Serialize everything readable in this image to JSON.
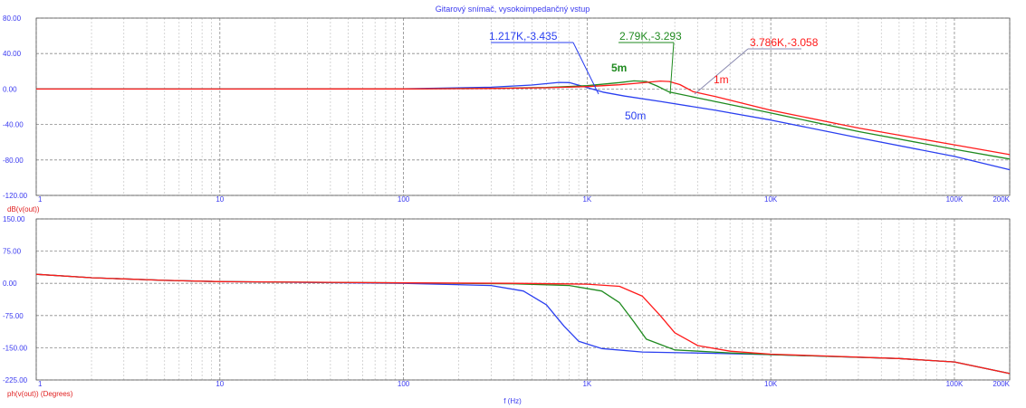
{
  "title": "Gitarový snímač, vysokoimpedančný vstup",
  "xlabel": "f (Hz)",
  "colors": {
    "red": "#ff1a1a",
    "green": "#1f8a1f",
    "blue": "#2a3ff0",
    "grid": "#9a9a9a",
    "ylabelColor": "#e02020"
  },
  "chart_data": [
    {
      "type": "line",
      "panel": "magnitude",
      "ylabel": "dB(v(out))",
      "xscale": "log",
      "xlim": [
        1,
        200000
      ],
      "ylim": [
        -120,
        80
      ],
      "grid": true,
      "x_ticks": [
        1,
        10,
        100,
        1000,
        10000,
        100000,
        200000
      ],
      "x_tick_labels": [
        "1",
        "10",
        "100",
        "1K",
        "10K",
        "100K",
        "200K"
      ],
      "y_ticks": [
        80,
        40,
        0,
        -40,
        -80,
        -120
      ],
      "y_tick_labels": [
        "80.00",
        "40.00",
        "0.00",
        "-40.00",
        "-80.00",
        "-120.00"
      ],
      "series": [
        {
          "name": "1m",
          "color": "red",
          "points": [
            [
              1,
              0
            ],
            [
              10,
              0
            ],
            [
              100,
              0.1
            ],
            [
              300,
              0.6
            ],
            [
              600,
              1.4
            ],
            [
              1000,
              2.8
            ],
            [
              1500,
              4.8
            ],
            [
              2000,
              7.0
            ],
            [
              2500,
              9.0
            ],
            [
              2800,
              8.5
            ],
            [
              3200,
              5.0
            ],
            [
              3786,
              -3.058
            ],
            [
              5000,
              -8.5
            ],
            [
              10000,
              -24
            ],
            [
              30000,
              -44
            ],
            [
              100000,
              -63
            ],
            [
              200000,
              -74
            ]
          ]
        },
        {
          "name": "5m",
          "color": "green",
          "points": [
            [
              1,
              0
            ],
            [
              10,
              0
            ],
            [
              100,
              0.1
            ],
            [
              300,
              0.7
            ],
            [
              600,
              1.8
            ],
            [
              1000,
              3.8
            ],
            [
              1500,
              7.2
            ],
            [
              1800,
              9.2
            ],
            [
              2100,
              8.5
            ],
            [
              2400,
              3.5
            ],
            [
              2790,
              -3.293
            ],
            [
              4000,
              -10
            ],
            [
              10000,
              -27
            ],
            [
              30000,
              -48
            ],
            [
              100000,
              -68
            ],
            [
              200000,
              -79
            ]
          ]
        },
        {
          "name": "50m",
          "color": "blue",
          "points": [
            [
              1,
              0
            ],
            [
              10,
              0
            ],
            [
              100,
              0.2
            ],
            [
              300,
              2.0
            ],
            [
              500,
              4.5
            ],
            [
              700,
              7.5
            ],
            [
              800,
              7.2
            ],
            [
              950,
              3.0
            ],
            [
              1217,
              -3.435
            ],
            [
              1600,
              -8
            ],
            [
              2500,
              -14
            ],
            [
              5000,
              -24
            ],
            [
              10000,
              -35
            ],
            [
              30000,
              -55
            ],
            [
              100000,
              -76
            ],
            [
              200000,
              -91
            ]
          ]
        }
      ],
      "annotations": [
        {
          "text": "1.217K,-3.435",
          "color": "blue"
        },
        {
          "text": "2.79K,-3.293",
          "color": "green"
        },
        {
          "text": "3.786K,-3.058",
          "color": "red"
        },
        {
          "text": "5m",
          "color": "green"
        },
        {
          "text": "1m",
          "color": "red"
        },
        {
          "text": "50m",
          "color": "blue"
        }
      ]
    },
    {
      "type": "line",
      "panel": "phase",
      "ylabel": "ph(v(out)) (Degrees)",
      "xscale": "log",
      "xlim": [
        1,
        200000
      ],
      "ylim": [
        -225,
        150
      ],
      "grid": true,
      "x_ticks": [
        1,
        10,
        100,
        1000,
        10000,
        100000,
        200000
      ],
      "x_tick_labels": [
        "1",
        "10",
        "100",
        "1K",
        "10K",
        "100K",
        "200K"
      ],
      "y_ticks": [
        150,
        75,
        0,
        -75,
        -150,
        -225
      ],
      "y_tick_labels": [
        "150.00",
        "75.00",
        "0.00",
        "-75.00",
        "-150.00",
        "-225.00"
      ],
      "series": [
        {
          "name": "1m",
          "color": "red",
          "points": [
            [
              1,
              21
            ],
            [
              2,
              13
            ],
            [
              5,
              7
            ],
            [
              10,
              4
            ],
            [
              100,
              1
            ],
            [
              400,
              0
            ],
            [
              1000,
              -2
            ],
            [
              1500,
              -7
            ],
            [
              2000,
              -30
            ],
            [
              2500,
              -75
            ],
            [
              3000,
              -115
            ],
            [
              4000,
              -145
            ],
            [
              6000,
              -158
            ],
            [
              10000,
              -165
            ],
            [
              50000,
              -175
            ],
            [
              100000,
              -183
            ],
            [
              200000,
              -210
            ]
          ]
        },
        {
          "name": "5m",
          "color": "green",
          "points": [
            [
              1,
              21
            ],
            [
              2,
              13
            ],
            [
              5,
              7
            ],
            [
              10,
              4
            ],
            [
              100,
              1
            ],
            [
              400,
              -1
            ],
            [
              800,
              -5
            ],
            [
              1200,
              -18
            ],
            [
              1500,
              -45
            ],
            [
              1800,
              -90
            ],
            [
              2100,
              -130
            ],
            [
              3000,
              -155
            ],
            [
              6000,
              -162
            ],
            [
              10000,
              -166
            ],
            [
              50000,
              -175
            ],
            [
              100000,
              -183
            ],
            [
              200000,
              -210
            ]
          ]
        },
        {
          "name": "50m",
          "color": "blue",
          "points": [
            [
              1,
              21
            ],
            [
              2,
              13
            ],
            [
              5,
              7
            ],
            [
              10,
              4
            ],
            [
              100,
              0
            ],
            [
              300,
              -5
            ],
            [
              450,
              -18
            ],
            [
              600,
              -50
            ],
            [
              750,
              -100
            ],
            [
              900,
              -135
            ],
            [
              1200,
              -152
            ],
            [
              2000,
              -160
            ],
            [
              5000,
              -163
            ],
            [
              10000,
              -166
            ],
            [
              50000,
              -175
            ],
            [
              100000,
              -183
            ],
            [
              200000,
              -210
            ]
          ]
        }
      ]
    }
  ]
}
